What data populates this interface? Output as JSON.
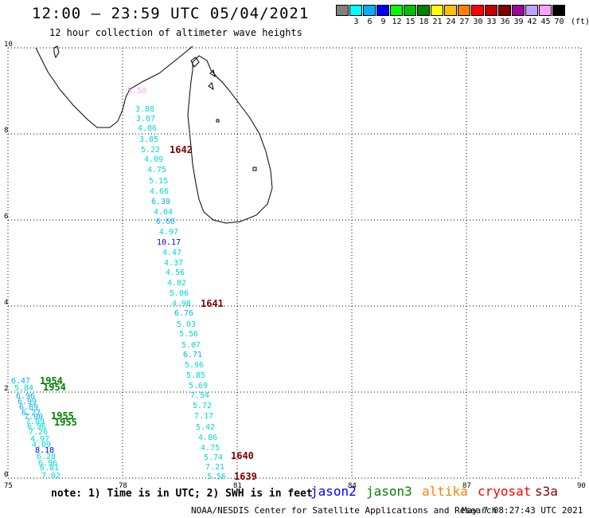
{
  "header": {
    "title": "12:00 – 23:59 UTC 05/04/2021",
    "subtitle": "12 hour collection of altimeter wave heights"
  },
  "colorbar": {
    "colors": [
      "#808080",
      "#00ffff",
      "#00b0ff",
      "#0000ff",
      "#00ff00",
      "#00c000",
      "#008000",
      "#ffff00",
      "#ffc000",
      "#ff8000",
      "#ff0000",
      "#c00000",
      "#800000",
      "#a000a0",
      "#c0a0ff",
      "#ffa0ff",
      "#000000"
    ],
    "labels": [
      "",
      "3",
      "6",
      "9",
      "12",
      "15",
      "18",
      "21",
      "24",
      "27",
      "30",
      "33",
      "36",
      "39",
      "42",
      "45",
      "70"
    ],
    "unit": "(ft)"
  },
  "axes": {
    "x_ticks": [
      "75",
      "78",
      "81",
      "84",
      "87",
      "90"
    ],
    "y_ticks": [
      "0",
      "2",
      "4",
      "6",
      "8",
      "10"
    ]
  },
  "readings": [
    {
      "text": "5.50",
      "color": "#ffa0ff"
    },
    {
      "text": "3.88",
      "color": "#00d8d8"
    },
    {
      "text": "3.07",
      "color": "#00d8d8"
    },
    {
      "text": "4.06",
      "color": "#00d8d8"
    },
    {
      "text": "3.85",
      "color": "#00d8d8"
    },
    {
      "text": "5.22",
      "color": "#00d8d8"
    },
    {
      "text": "4.09",
      "color": "#00d8d8"
    },
    {
      "text": "4.75",
      "color": "#00d8d8"
    },
    {
      "text": "5.15",
      "color": "#00d8d8"
    },
    {
      "text": "4.66",
      "color": "#00d8d8"
    },
    {
      "text": "6.39",
      "color": "#00b0ff"
    },
    {
      "text": "4.04",
      "color": "#00d8d8"
    },
    {
      "text": "6.66",
      "color": "#00b0ff"
    },
    {
      "text": "4.97",
      "color": "#00d8d8"
    },
    {
      "text": "10.17",
      "color": "#0000ff"
    },
    {
      "text": "4.47",
      "color": "#00d8d8"
    },
    {
      "text": "4.37",
      "color": "#00d8d8"
    },
    {
      "text": "4.56",
      "color": "#00d8d8"
    },
    {
      "text": "4.82",
      "color": "#00d8d8"
    },
    {
      "text": "5.06",
      "color": "#00d8d8"
    },
    {
      "text": "4.98",
      "color": "#00d8d8"
    },
    {
      "text": "6.76",
      "color": "#00b0ff"
    },
    {
      "text": "5.03",
      "color": "#00d8d8"
    },
    {
      "text": "5.56",
      "color": "#00d8d8"
    },
    {
      "text": "5.07",
      "color": "#00d8d8"
    },
    {
      "text": "6.71",
      "color": "#00b0ff"
    },
    {
      "text": "5.96",
      "color": "#00d8d8"
    },
    {
      "text": "5.85",
      "color": "#00d8d8"
    },
    {
      "text": "5.69",
      "color": "#00d8d8"
    },
    {
      "text": "7.54",
      "color": "#00d8d8"
    },
    {
      "text": "5.72",
      "color": "#00d8d8"
    },
    {
      "text": "7.17",
      "color": "#00d8d8"
    },
    {
      "text": "5.42",
      "color": "#00d8d8"
    },
    {
      "text": "4.86",
      "color": "#00d8d8"
    },
    {
      "text": "4.75",
      "color": "#00d8d8"
    },
    {
      "text": "5.74",
      "color": "#00d8d8"
    },
    {
      "text": "7.21",
      "color": "#00d8d8"
    },
    {
      "text": "5.56",
      "color": "#00d8d8"
    },
    {
      "text": "6.47",
      "color": "#00b0ff"
    },
    {
      "text": "5.84",
      "color": "#00d8d8"
    },
    {
      "text": "6.96",
      "color": "#00b0ff"
    },
    {
      "text": "6.99",
      "color": "#00b0ff"
    },
    {
      "text": "6.89",
      "color": "#00b0ff"
    },
    {
      "text": "6.27",
      "color": "#00b0ff"
    },
    {
      "text": "7.00",
      "color": "#00b0ff"
    },
    {
      "text": "7.09",
      "color": "#00d8d8"
    },
    {
      "text": "6.96",
      "color": "#00d8d8"
    },
    {
      "text": "7.26",
      "color": "#00d8d8"
    },
    {
      "text": "4.97",
      "color": "#00d8d8"
    },
    {
      "text": "4.09",
      "color": "#00d8d8"
    },
    {
      "text": "8.18",
      "color": "#0000ff"
    },
    {
      "text": "6.28",
      "color": "#00d8d8"
    },
    {
      "text": "6.96",
      "color": "#00d8d8"
    },
    {
      "text": "6.81",
      "color": "#00d8d8"
    },
    {
      "text": "7.02",
      "color": "#00d8d8"
    }
  ],
  "times": [
    {
      "text": "1642",
      "color": "#800000"
    },
    {
      "text": "1641",
      "color": "#800000"
    },
    {
      "text": "1640",
      "color": "#800000"
    },
    {
      "text": "1639",
      "color": "#800000"
    },
    {
      "text": "1954",
      "color": "#008000"
    },
    {
      "text": "1954",
      "color": "#008000"
    },
    {
      "text": "1955",
      "color": "#008000"
    },
    {
      "text": "1955",
      "color": "#008000"
    }
  ],
  "footer": {
    "note": "note: 1) Time is in UTC; 2) SWH is in feet",
    "missions": [
      {
        "name": "jason2",
        "color": "#0000ff"
      },
      {
        "name": "jason3",
        "color": "#008000"
      },
      {
        "name": "altika",
        "color": "#ff8000"
      },
      {
        "name": "cryosat",
        "color": "#ff0000"
      },
      {
        "name": "s3a",
        "color": "#800000"
      }
    ],
    "credit": "NOAA/NESDIS Center for Satellite Applications and Research",
    "timestamp": "May  7 08:27:43 UTC 2021"
  }
}
